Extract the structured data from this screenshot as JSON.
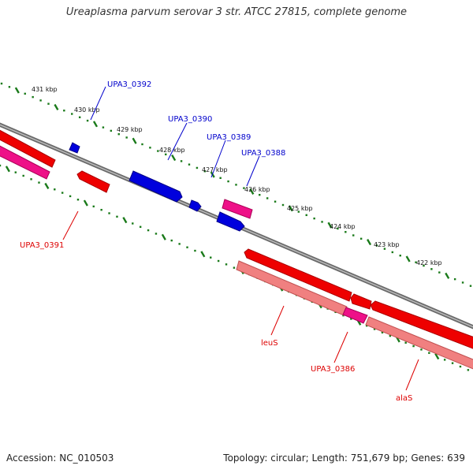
{
  "title": "Ureaplasma parvum serovar 3 str. ATCC 27815, complete genome",
  "footer": {
    "accession": "Accession: NC_010503",
    "summary": "Topology: circular; Length: 751,679 bp; Genes: 639"
  },
  "colors": {
    "backbone": "#7a7a7a",
    "tick": "#1a7a1a",
    "forward_gene": "#0000dd",
    "reverse_gene": "#ee0000",
    "rna_gene": "#ee1188",
    "pseudo": "#f08080"
  },
  "kbp_labels": [
    "431 kbp",
    "430 kbp",
    "429 kbp",
    "428 kbp",
    "427 kbp",
    "426 kbp",
    "425 kbp",
    "424 kbp",
    "423 kbp",
    "422 kbp"
  ],
  "gene_labels": {
    "upa3_0392": "UPA3_0392",
    "upa3_0390": "UPA3_0390",
    "upa3_0389": "UPA3_0389",
    "upa3_0388": "UPA3_0388",
    "upa3_0391": "UPA3_0391",
    "leus": "leuS",
    "upa3_0386": "UPA3_0386",
    "alas": "alaS"
  }
}
